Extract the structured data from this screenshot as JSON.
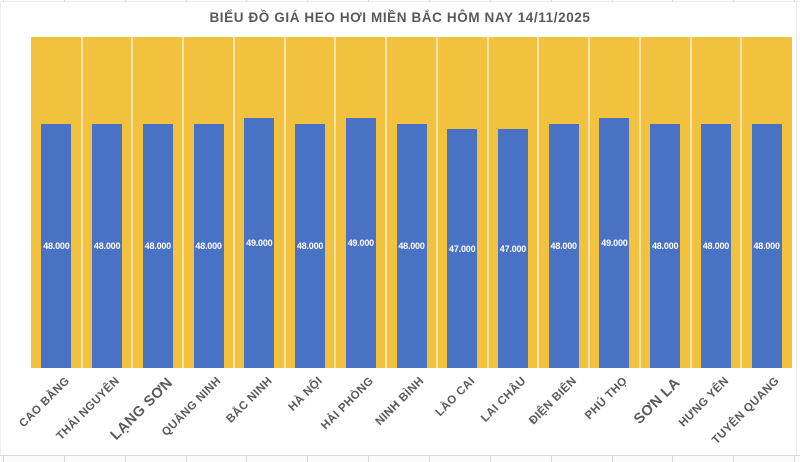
{
  "chart_data": {
    "type": "bar",
    "title": "BIỂU ĐỒ GIÁ HEO HƠI MIỀN BẮC HÔM NAY 14/11/2025",
    "categories": [
      "CAO BẰNG",
      "THÁI NGUYÊN",
      "LẠNG SƠN",
      "QUẢNG NINH",
      "BẮC NINH",
      "HÀ NỘI",
      "HẢI PHÒNG",
      "NINH BÌNH",
      "LÀO CAI",
      "LAI CHÂU",
      "ĐIỆN BIÊN",
      "PHÚ THỌ",
      "SƠN LA",
      "HƯNG YÊN",
      "TUYÊN QUANG"
    ],
    "values": [
      48000,
      48000,
      48000,
      48000,
      49000,
      48000,
      49000,
      48000,
      47000,
      47000,
      48000,
      49000,
      48000,
      48000,
      48000
    ],
    "value_labels": [
      "48.000",
      "48.000",
      "48.000",
      "48.000",
      "49.000",
      "48.000",
      "49.000",
      "48.000",
      "47.000",
      "47.000",
      "48.000",
      "49.000",
      "48.000",
      "48.000",
      "48.000"
    ],
    "emphasized_categories": [
      "LẠNG SƠN",
      "SƠN LA"
    ],
    "xlabel": "",
    "ylabel": "",
    "ylim": [
      0,
      65000
    ],
    "legend": "none",
    "grid": "vertical-category-separators",
    "value_label_position": "center",
    "colors": {
      "bar": "#4A72C4",
      "plot_background": "#F2C13E",
      "title_text": "#595959",
      "category_text": "#595959",
      "value_text": "#FFFFFF",
      "gridline": "rgba(255,255,255,0.55)"
    }
  }
}
